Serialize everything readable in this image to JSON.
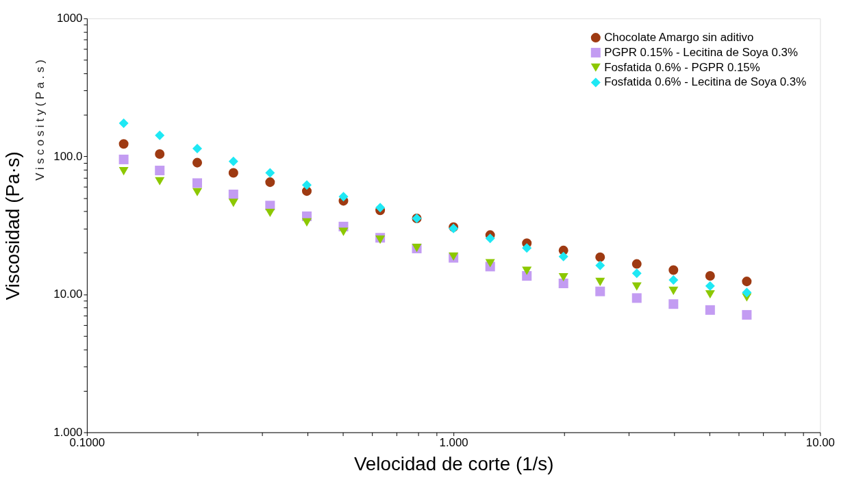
{
  "chart_data": {
    "type": "scatter",
    "xlabel": "Velocidad de corte (1/s)",
    "ylabel": "Viscosidad (Pa·s)",
    "annotations": [
      "V i s c o s i t y   ( P a . s )"
    ],
    "log": "xy",
    "grid": false,
    "legend": "top right",
    "xlim": [
      0.1,
      10
    ],
    "ylim": [
      1,
      1000
    ],
    "xticks": [
      {
        "value": 0.1,
        "label": "0.1000"
      },
      {
        "value": 0.2,
        "label": null
      },
      {
        "value": 0.3,
        "label": null
      },
      {
        "value": 0.4,
        "label": null
      },
      {
        "value": 0.5,
        "label": null
      },
      {
        "value": 0.6,
        "label": null
      },
      {
        "value": 0.7,
        "label": null
      },
      {
        "value": 0.8,
        "label": null
      },
      {
        "value": 0.9,
        "label": null
      },
      {
        "value": 1,
        "label": "1.000"
      },
      {
        "value": 2,
        "label": null
      },
      {
        "value": 3,
        "label": null
      },
      {
        "value": 4,
        "label": null
      },
      {
        "value": 5,
        "label": null
      },
      {
        "value": 6,
        "label": null
      },
      {
        "value": 7,
        "label": null
      },
      {
        "value": 8,
        "label": null
      },
      {
        "value": 9,
        "label": null
      },
      {
        "value": 10,
        "label": "10.00"
      }
    ],
    "yticks": [
      {
        "value": 1,
        "label": "1.000"
      },
      {
        "value": 2,
        "label": null
      },
      {
        "value": 3,
        "label": null
      },
      {
        "value": 4,
        "label": null
      },
      {
        "value": 5,
        "label": null
      },
      {
        "value": 6,
        "label": null
      },
      {
        "value": 7,
        "label": null
      },
      {
        "value": 8,
        "label": null
      },
      {
        "value": 9,
        "label": null
      },
      {
        "value": 10,
        "label": "10.00"
      },
      {
        "value": 20,
        "label": null
      },
      {
        "value": 30,
        "label": null
      },
      {
        "value": 40,
        "label": null
      },
      {
        "value": 50,
        "label": null
      },
      {
        "value": 60,
        "label": null
      },
      {
        "value": 70,
        "label": null
      },
      {
        "value": 80,
        "label": null
      },
      {
        "value": 90,
        "label": null
      },
      {
        "value": 100,
        "label": "100.0"
      },
      {
        "value": 200,
        "label": null
      },
      {
        "value": 300,
        "label": null
      },
      {
        "value": 400,
        "label": null
      },
      {
        "value": 500,
        "label": null
      },
      {
        "value": 600,
        "label": null
      },
      {
        "value": 700,
        "label": null
      },
      {
        "value": 800,
        "label": null
      },
      {
        "value": 900,
        "label": null
      },
      {
        "value": 1000,
        "label": "1000"
      }
    ],
    "x": [
      0.126,
      0.158,
      0.2,
      0.251,
      0.316,
      0.398,
      0.501,
      0.631,
      0.794,
      1.0,
      1.259,
      1.585,
      1.995,
      2.512,
      3.162,
      3.981,
      5.012,
      6.31
    ],
    "series": [
      {
        "name": "Chocolate Amargo sin aditivo",
        "color": "#9e3a12",
        "marker": "circle",
        "values": [
          123,
          104,
          90,
          76,
          65,
          56,
          47.6,
          40.6,
          35.5,
          30.7,
          26.9,
          23.5,
          20.8,
          18.6,
          16.6,
          15.0,
          13.6,
          12.4
        ]
      },
      {
        "name": "PGPR 0.15% - Lecitina de Soya 0.3%",
        "color": "#c39cf2",
        "marker": "square",
        "values": [
          95,
          79,
          64,
          53,
          44,
          36.8,
          31,
          25.7,
          21.5,
          18.4,
          15.9,
          13.6,
          12.0,
          10.5,
          9.4,
          8.5,
          7.7,
          7.1
        ]
      },
      {
        "name": "Fosfatida 0.6% - PGPR 0.15%",
        "color": "#8cc800",
        "marker": "triangle",
        "values": [
          78,
          66,
          55,
          46,
          38.9,
          33.2,
          28.4,
          24.9,
          21.7,
          18.8,
          16.8,
          14.8,
          13.3,
          12.3,
          11.4,
          10.6,
          10.0,
          9.5
        ]
      },
      {
        "name": "Fosfatida 0.6% - Lecitina de Soya 0.3%",
        "color": "#1ee8f4",
        "marker": "diamond",
        "values": [
          174,
          142,
          114,
          92,
          76,
          62,
          51,
          42.5,
          35.5,
          30,
          25.4,
          21.7,
          18.8,
          16.2,
          14.2,
          12.7,
          11.5,
          10.3
        ]
      }
    ]
  }
}
